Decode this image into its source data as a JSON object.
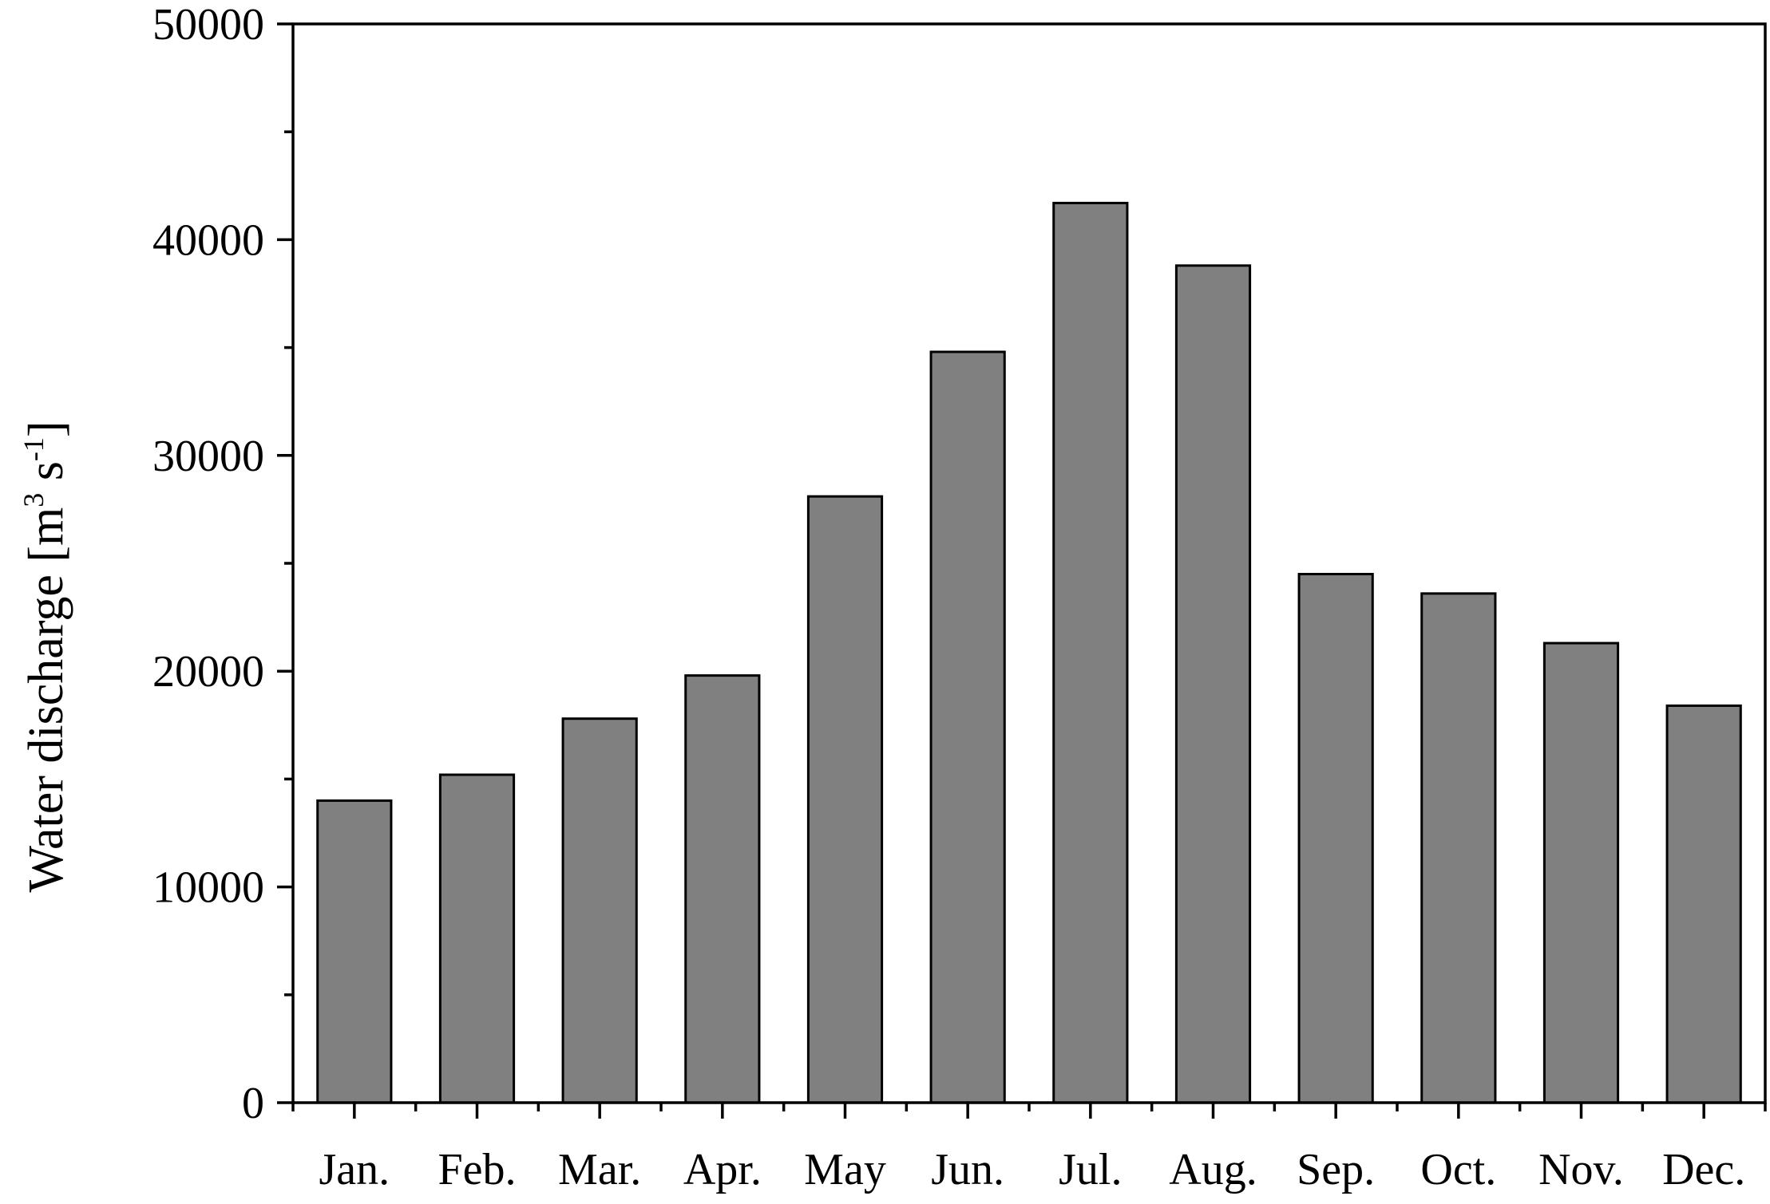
{
  "chart_data": {
    "type": "bar",
    "categories": [
      "Jan.",
      "Feb.",
      "Mar.",
      "Apr.",
      "May",
      "Jun.",
      "Jul.",
      "Aug.",
      "Sep.",
      "Oct.",
      "Nov.",
      "Dec."
    ],
    "values": [
      14000,
      15200,
      17800,
      19800,
      28100,
      34800,
      41700,
      38800,
      24500,
      23600,
      21300,
      18400
    ],
    "ylabel_parts": [
      "Water discharge [m",
      "3",
      " s",
      "-1",
      "]"
    ],
    "ylim": [
      0,
      50000
    ],
    "yticks": [
      0,
      10000,
      20000,
      30000,
      40000,
      50000
    ],
    "ytick_labels": [
      "0",
      "10000",
      "20000",
      "30000",
      "40000",
      "50000"
    ],
    "bar_color": "#808080",
    "grid": false
  }
}
